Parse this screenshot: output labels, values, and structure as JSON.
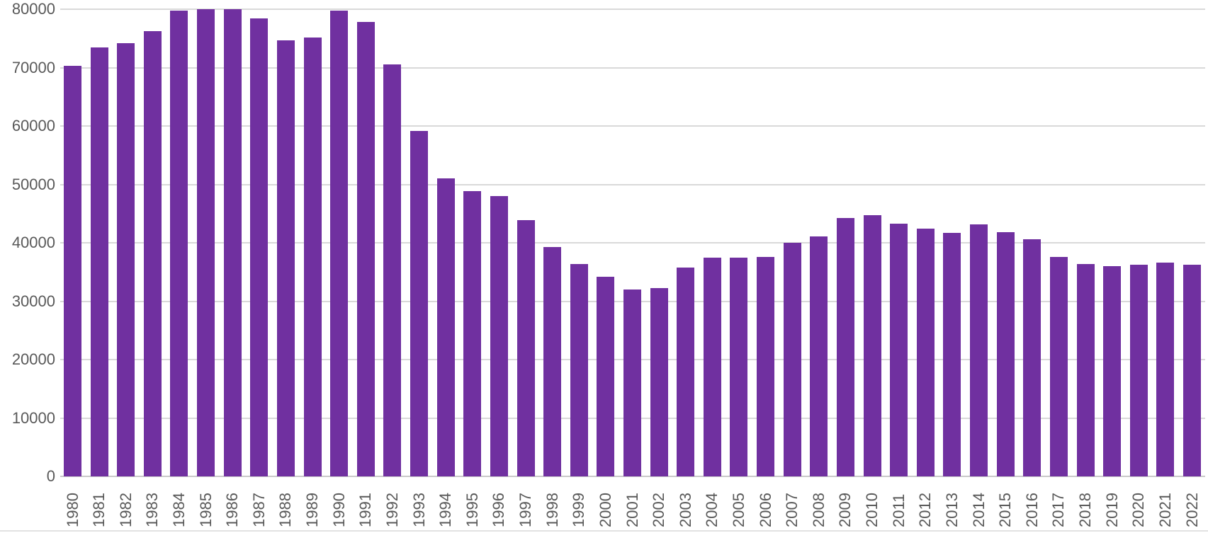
{
  "chart_data": {
    "type": "bar",
    "title": "",
    "xlabel": "",
    "ylabel": "",
    "categories": [
      "1980",
      "1981",
      "1982",
      "1983",
      "1984",
      "1985",
      "1986",
      "1987",
      "1988",
      "1989",
      "1990",
      "1991",
      "1992",
      "1993",
      "1994",
      "1995",
      "1996",
      "1997",
      "1998",
      "1999",
      "2000",
      "2001",
      "2002",
      "2003",
      "2004",
      "2005",
      "2006",
      "2007",
      "2008",
      "2009",
      "2010",
      "2011",
      "2012",
      "2013",
      "2014",
      "2015",
      "2016",
      "2017",
      "2018",
      "2019",
      "2020",
      "2021",
      "2022"
    ],
    "values": [
      70300,
      73500,
      74200,
      76300,
      79800,
      80000,
      80000,
      78400,
      74700,
      75200,
      79800,
      77800,
      70600,
      59100,
      51000,
      48900,
      48000,
      43900,
      39300,
      36400,
      34200,
      32000,
      32200,
      35800,
      37400,
      37400,
      37600,
      40000,
      41100,
      44300,
      44700,
      43300,
      42400,
      41700,
      43200,
      41800,
      40600,
      37600,
      36400,
      36000,
      36300,
      36600,
      36300
    ],
    "ylim": [
      0,
      80000
    ],
    "yticks": [
      0,
      10000,
      20000,
      30000,
      40000,
      50000,
      60000,
      70000,
      80000
    ],
    "grid": true,
    "legend": false,
    "bar_color": "#7030A0",
    "gridline_color": "#D9D9D9",
    "axis_line_color": "#C9C9C9",
    "label_color": "#595959"
  }
}
